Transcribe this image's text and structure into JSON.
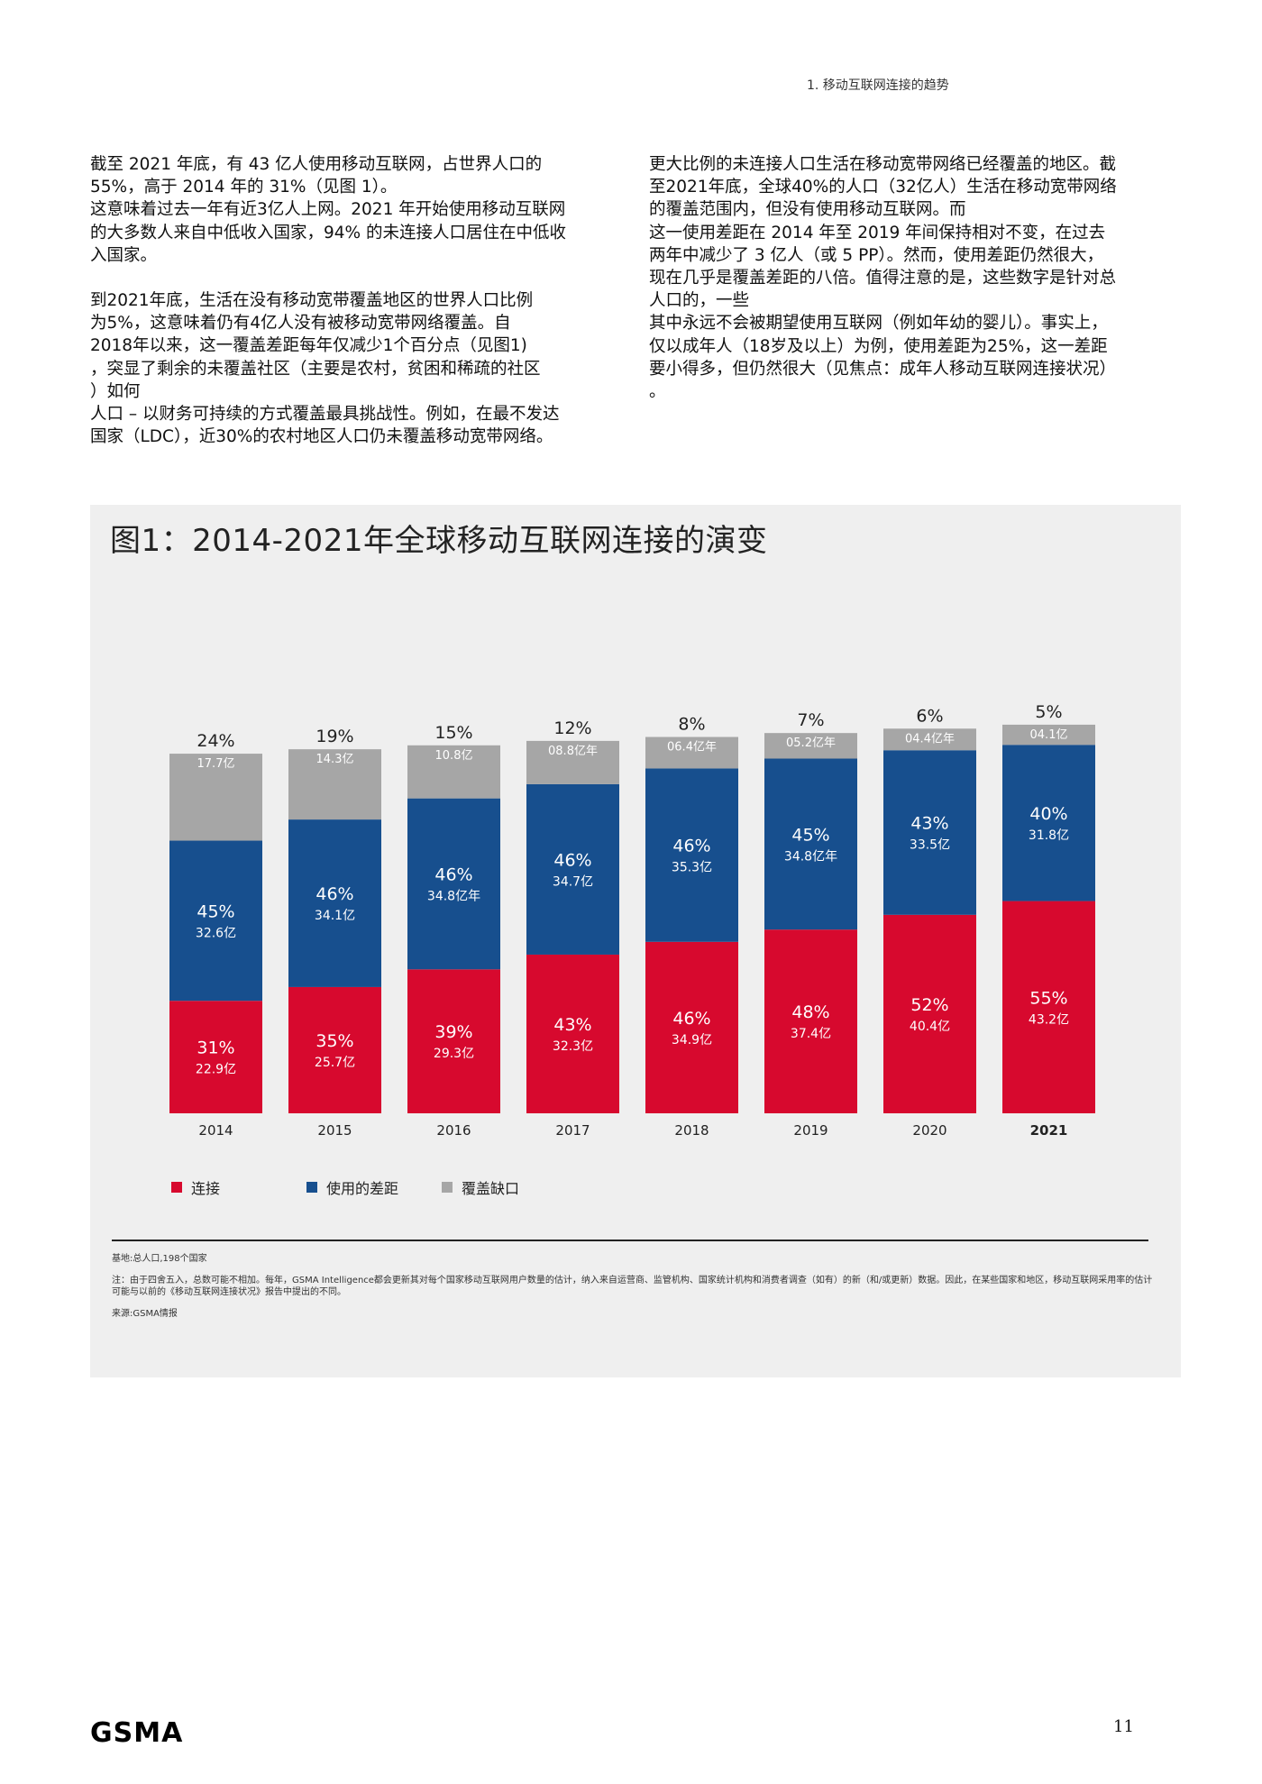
{
  "header": {
    "section": "1. 移动互联网连接的趋势"
  },
  "left_column": {
    "para1": [
      "截至 2021 年底，有 43 亿人使用移动互联网，占世界人口的",
      "55%，高于 2014 年的 31%（见图 1）。",
      "这意味着过去一年有近3亿人上网。2021 年开始使用移动互联网",
      "的大多数人来自中低收入国家，94% 的未连接人口居住在中低收",
      "入国家。"
    ],
    "para2": [
      "到2021年底，生活在没有移动宽带覆盖地区的世界人口比例",
      "为5%，这意味着仍有4亿人没有被移动宽带网络覆盖。自",
      "2018年以来，这一覆盖差距每年仅减少1个百分点（见图1)",
      "，突显了剩余的未覆盖社区（主要是农村，贫困和稀疏的社区",
      "）如何",
      "人口 – 以财务可持续的方式覆盖最具挑战性。例如，在最不发达",
      "国家（LDC），近30%的农村地区人口仍未覆盖移动宽带网络。"
    ]
  },
  "right_column": {
    "para1": [
      "更大比例的未连接人口生活在移动宽带网络已经覆盖的地区。截",
      "至2021年底，全球40%的人口（32亿人）生活在移动宽带网络",
      "的覆盖范围内，但没有使用移动互联网。而",
      "这一使用差距在 2014 年至 2019 年间保持相对不变，在过去",
      "两年中减少了 3 亿人（或 5 PP）。然而，使用差距仍然很大，",
      "现在几乎是覆盖差距的八倍。值得注意的是，这些数字是针对总",
      "人口的，一些",
      "其中永远不会被期望使用互联网（例如年幼的婴儿）。事实上，",
      "仅以成年人（18岁及以上）为例，使用差距为25%，这一差距",
      "要小得多，但仍然很大（见焦点：成年人移动互联网连接状况）",
      "。"
    ]
  },
  "figure": {
    "title": "图1：2014-2021年全球移动互联网连接的演变",
    "legend": [
      "连接",
      "使用的差距",
      "覆盖缺口"
    ],
    "notes": {
      "base": "基地:总人口,198个国家",
      "note": "注：由于四舍五入，总数可能不相加。每年，GSMA Intelligence都会更新其对每个国家移动互联网用户数量的估计，纳入来自运营商、监管机构、国家统计机构和消费者调查（如有）的新（和/或更新）数据。因此，在某些国家和地区，移动互联网采用率的估计可能与以前的《移动互联网连接状况》报告中提出的不同。",
      "source": "来源:GSMA情报"
    }
  },
  "chart_data": {
    "type": "bar",
    "stacked": true,
    "categories": [
      "2014",
      "2015",
      "2016",
      "2017",
      "2018",
      "2019",
      "2020",
      "2021"
    ],
    "series": [
      {
        "name": "连接",
        "color": "#d7092e",
        "percent": [
          31,
          35,
          39,
          43,
          46,
          48,
          52,
          55
        ],
        "values": [
          22.9,
          25.7,
          29.3,
          32.3,
          34.9,
          37.4,
          40.4,
          43.2
        ],
        "labels": [
          "22.9亿",
          "25.7亿",
          "29.3亿",
          "32.3亿",
          "34.9亿",
          "37.4亿",
          "40.4亿",
          "43.2亿"
        ],
        "percent_labels": [
          "31%",
          "35%",
          "39%",
          "43%",
          "46%",
          "48%",
          "52%",
          "55%"
        ]
      },
      {
        "name": "使用的差距",
        "color": "#174f8e",
        "percent": [
          45,
          46,
          46,
          46,
          46,
          45,
          43,
          40
        ],
        "values": [
          32.6,
          34.1,
          34.8,
          34.7,
          35.3,
          34.8,
          33.5,
          31.8
        ],
        "labels": [
          "32.6亿",
          "34.1亿",
          "34.8亿年",
          "34.7亿",
          "35.3亿",
          "34.8亿年",
          "33.5亿",
          "31.8亿"
        ],
        "percent_labels": [
          "45%",
          "46%",
          "46%",
          "46%",
          "46%",
          "45%",
          "43%",
          "40%"
        ]
      },
      {
        "name": "覆盖缺口",
        "color": "#a6a6a6",
        "percent": [
          24,
          19,
          15,
          12,
          8,
          7,
          6,
          5
        ],
        "values": [
          17.7,
          14.3,
          10.8,
          8.8,
          6.4,
          5.2,
          4.4,
          4.1
        ],
        "labels": [
          "17.7亿",
          "14.3亿",
          "10.8亿",
          "08.8亿年",
          "06.4亿年",
          "05.2亿年",
          "04.4亿年",
          "04.1亿"
        ],
        "percent_labels": [
          "24%",
          "19%",
          "15%",
          "12%",
          "8%",
          "7%",
          "6%",
          "5%"
        ]
      }
    ]
  },
  "footer": {
    "logo": "GSMA",
    "page": "11"
  }
}
